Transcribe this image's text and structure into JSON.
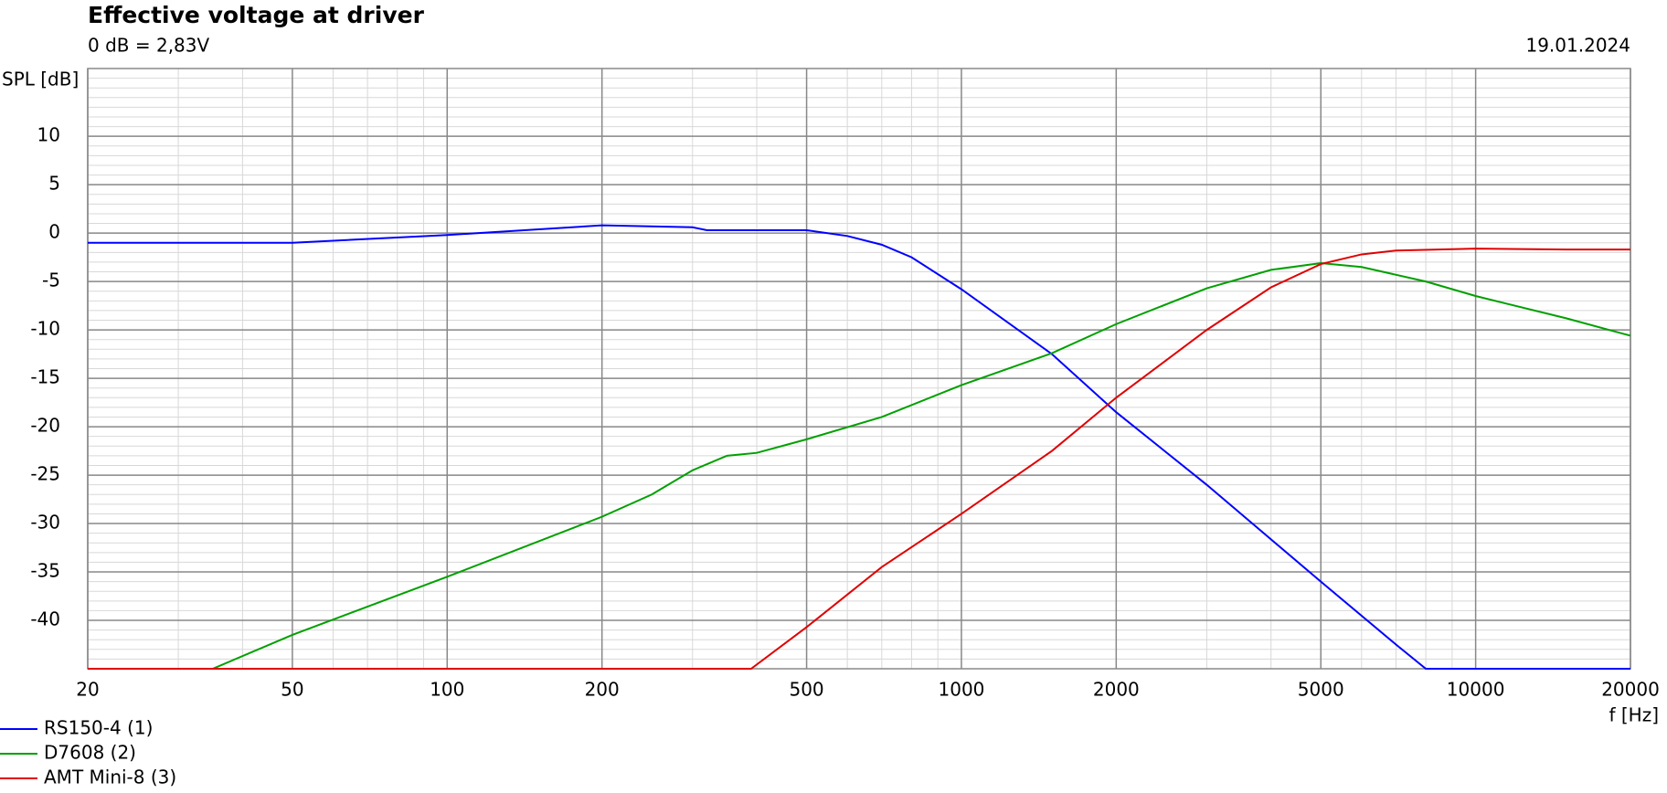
{
  "chart_data": {
    "type": "line",
    "title": "Effective voltage at driver",
    "subtitle": "0 dB = 2,83V",
    "date": "19.01.2024",
    "x_label": "f [Hz]",
    "y_label": "SPL [dB]",
    "xscale": "log",
    "grid": true,
    "minor_grid": true,
    "legend": "bottom-left",
    "xlim": [
      20,
      20000
    ],
    "ylim": [
      -45,
      17
    ],
    "xticks": [
      20,
      50,
      100,
      200,
      500,
      1000,
      2000,
      5000,
      10000,
      20000
    ],
    "yticks": [
      10,
      5,
      0,
      -5,
      -10,
      -15,
      -20,
      -25,
      -30,
      -35,
      -40
    ],
    "series": [
      {
        "name": "RS150-4 (1)",
        "color": "#0000ff",
        "x": [
          20,
          50,
          100,
          200,
          300,
          320,
          500,
          600,
          700,
          800,
          1000,
          1500,
          2000,
          3000,
          5000,
          7000,
          8000,
          20000
        ],
        "values": [
          -1,
          -1,
          -0.2,
          0.8,
          0.6,
          0.3,
          0.3,
          -0.3,
          -1.2,
          -2.5,
          -5.8,
          -12.5,
          -18.5,
          -26,
          -36,
          -42.5,
          -45,
          -45
        ]
      },
      {
        "name": "D7608 (2)",
        "color": "#00a000",
        "x": [
          20,
          35,
          50,
          100,
          200,
          250,
          300,
          350,
          400,
          500,
          700,
          1000,
          1500,
          2000,
          3000,
          4000,
          5000,
          6000,
          8000,
          10000,
          15000,
          20000
        ],
        "values": [
          -45,
          -45,
          -41.5,
          -35.5,
          -29.3,
          -27,
          -24.5,
          -23,
          -22.7,
          -21.3,
          -19,
          -15.7,
          -12.4,
          -9.4,
          -5.7,
          -3.8,
          -3.1,
          -3.5,
          -5,
          -6.5,
          -8.8,
          -10.6
        ]
      },
      {
        "name": "AMT Mini-8 (3)",
        "color": "#e00000",
        "x": [
          20,
          390,
          500,
          700,
          1000,
          1500,
          2000,
          3000,
          4000,
          5000,
          6000,
          7000,
          10000,
          15000,
          20000
        ],
        "values": [
          -45,
          -45,
          -40.7,
          -34.5,
          -29,
          -22.5,
          -17,
          -10,
          -5.6,
          -3.2,
          -2.2,
          -1.8,
          -1.6,
          -1.7,
          -1.7
        ]
      }
    ]
  }
}
